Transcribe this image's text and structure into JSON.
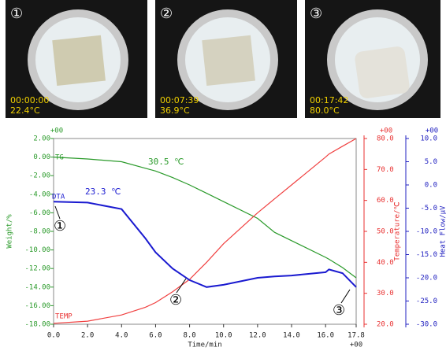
{
  "photos": [
    {
      "number": "①",
      "time": "00:00:00",
      "temperature": "22.4°C"
    },
    {
      "number": "②",
      "time": "00:07:39",
      "temperature": "36.9°C"
    },
    {
      "number": "③",
      "time": "00:17:42",
      "temperature": "80.0°C"
    }
  ],
  "chart_data": {
    "type": "line",
    "x_label": "Time/min",
    "y_label": "Weight/%",
    "y2_label": "Temperature/℃",
    "y3_label": "Heat Flow/μV",
    "exponents": {
      "y": "+00",
      "y2": "+00",
      "y3": "+00",
      "x": "+00"
    },
    "annotations": {
      "tg": "TG",
      "dta": "DTA",
      "temp": "TEMP",
      "tg_onset": "30.5 ℃",
      "dta_onset": "23.3 ℃",
      "mark1": "①",
      "mark2": "②",
      "mark3": "③"
    },
    "xlim": [
      0,
      17.8
    ],
    "xticks": [
      {
        "value": 0,
        "label": "0.0"
      },
      {
        "value": 2,
        "label": "2.0"
      },
      {
        "value": 4,
        "label": "4.0"
      },
      {
        "value": 6,
        "label": "6.0"
      },
      {
        "value": 8,
        "label": "8.0"
      },
      {
        "value": 10,
        "label": "10.0"
      },
      {
        "value": 12,
        "label": "12.0"
      },
      {
        "value": 14,
        "label": "14.0"
      },
      {
        "value": 16,
        "label": "16.0"
      },
      {
        "value": 17.8,
        "label": "17.8"
      }
    ],
    "ylim": [
      -18,
      2
    ],
    "yticks": [
      {
        "value": 2,
        "label": "2.00"
      },
      {
        "value": 0,
        "label": "0.00"
      },
      {
        "value": -2,
        "label": "-2.00"
      },
      {
        "value": -4,
        "label": "-4.00"
      },
      {
        "value": -6,
        "label": "-6.00"
      },
      {
        "value": -8,
        "label": "-8.00"
      },
      {
        "value": -10,
        "label": "-10.00"
      },
      {
        "value": -12,
        "label": "-12.00"
      },
      {
        "value": -14,
        "label": "-14.00"
      },
      {
        "value": -16,
        "label": "-16.00"
      },
      {
        "value": -18,
        "label": "-18.00"
      }
    ],
    "y2lim": [
      20,
      80
    ],
    "y2ticks": [
      {
        "value": 20,
        "label": "20.0"
      },
      {
        "value": 30,
        "label": "30.0"
      },
      {
        "value": 40,
        "label": "40.0"
      },
      {
        "value": 50,
        "label": "50.0"
      },
      {
        "value": 60,
        "label": "60.0"
      },
      {
        "value": 70,
        "label": "70.0"
      },
      {
        "value": 80,
        "label": "80.0"
      }
    ],
    "y3lim": [
      -30,
      10
    ],
    "y3ticks": [
      {
        "value": 10,
        "label": "10.0"
      },
      {
        "value": 5,
        "label": "5.0"
      },
      {
        "value": 0,
        "label": "0.0"
      },
      {
        "value": -5,
        "label": "-5.0"
      },
      {
        "value": -10,
        "label": "-10.0"
      },
      {
        "value": -15,
        "label": "-15.0"
      },
      {
        "value": -20,
        "label": "-20.0"
      },
      {
        "value": -25,
        "label": "-25.0"
      },
      {
        "value": -30,
        "label": "-30.0"
      }
    ],
    "axis_colors": {
      "y": "#2a9a2a",
      "y2": "#e83030",
      "y3": "#2020c0"
    },
    "x": [
      0,
      2,
      4,
      5.4,
      6,
      7,
      8,
      9,
      10,
      12,
      13,
      14,
      16,
      16.2,
      17,
      17.8
    ],
    "series": [
      {
        "name": "TG",
        "color": "#2a9a2a",
        "axis": "y",
        "values": [
          0,
          -0.2,
          -0.5,
          -1.2,
          -1.5,
          -2.2,
          -3.0,
          -3.9,
          -4.8,
          -6.6,
          -8.1,
          -9.0,
          -10.8,
          -11.0,
          -11.9,
          -13.0
        ]
      },
      {
        "name": "TEMP",
        "color": "#f04040",
        "axis": "y2",
        "values": [
          20.3,
          21,
          23,
          25.5,
          27,
          30.5,
          34.5,
          40,
          46,
          56,
          60.5,
          65,
          74,
          75,
          77.5,
          80
        ]
      },
      {
        "name": "DTA",
        "color": "#1a1ad0",
        "axis": "y3",
        "values": [
          -3.6,
          -3.8,
          -5.2,
          -11.5,
          -14.5,
          -18,
          -20.5,
          -22,
          -21.5,
          -20,
          -19.7,
          -19.5,
          -18.8,
          -18.2,
          -19,
          -22
        ]
      }
    ]
  }
}
